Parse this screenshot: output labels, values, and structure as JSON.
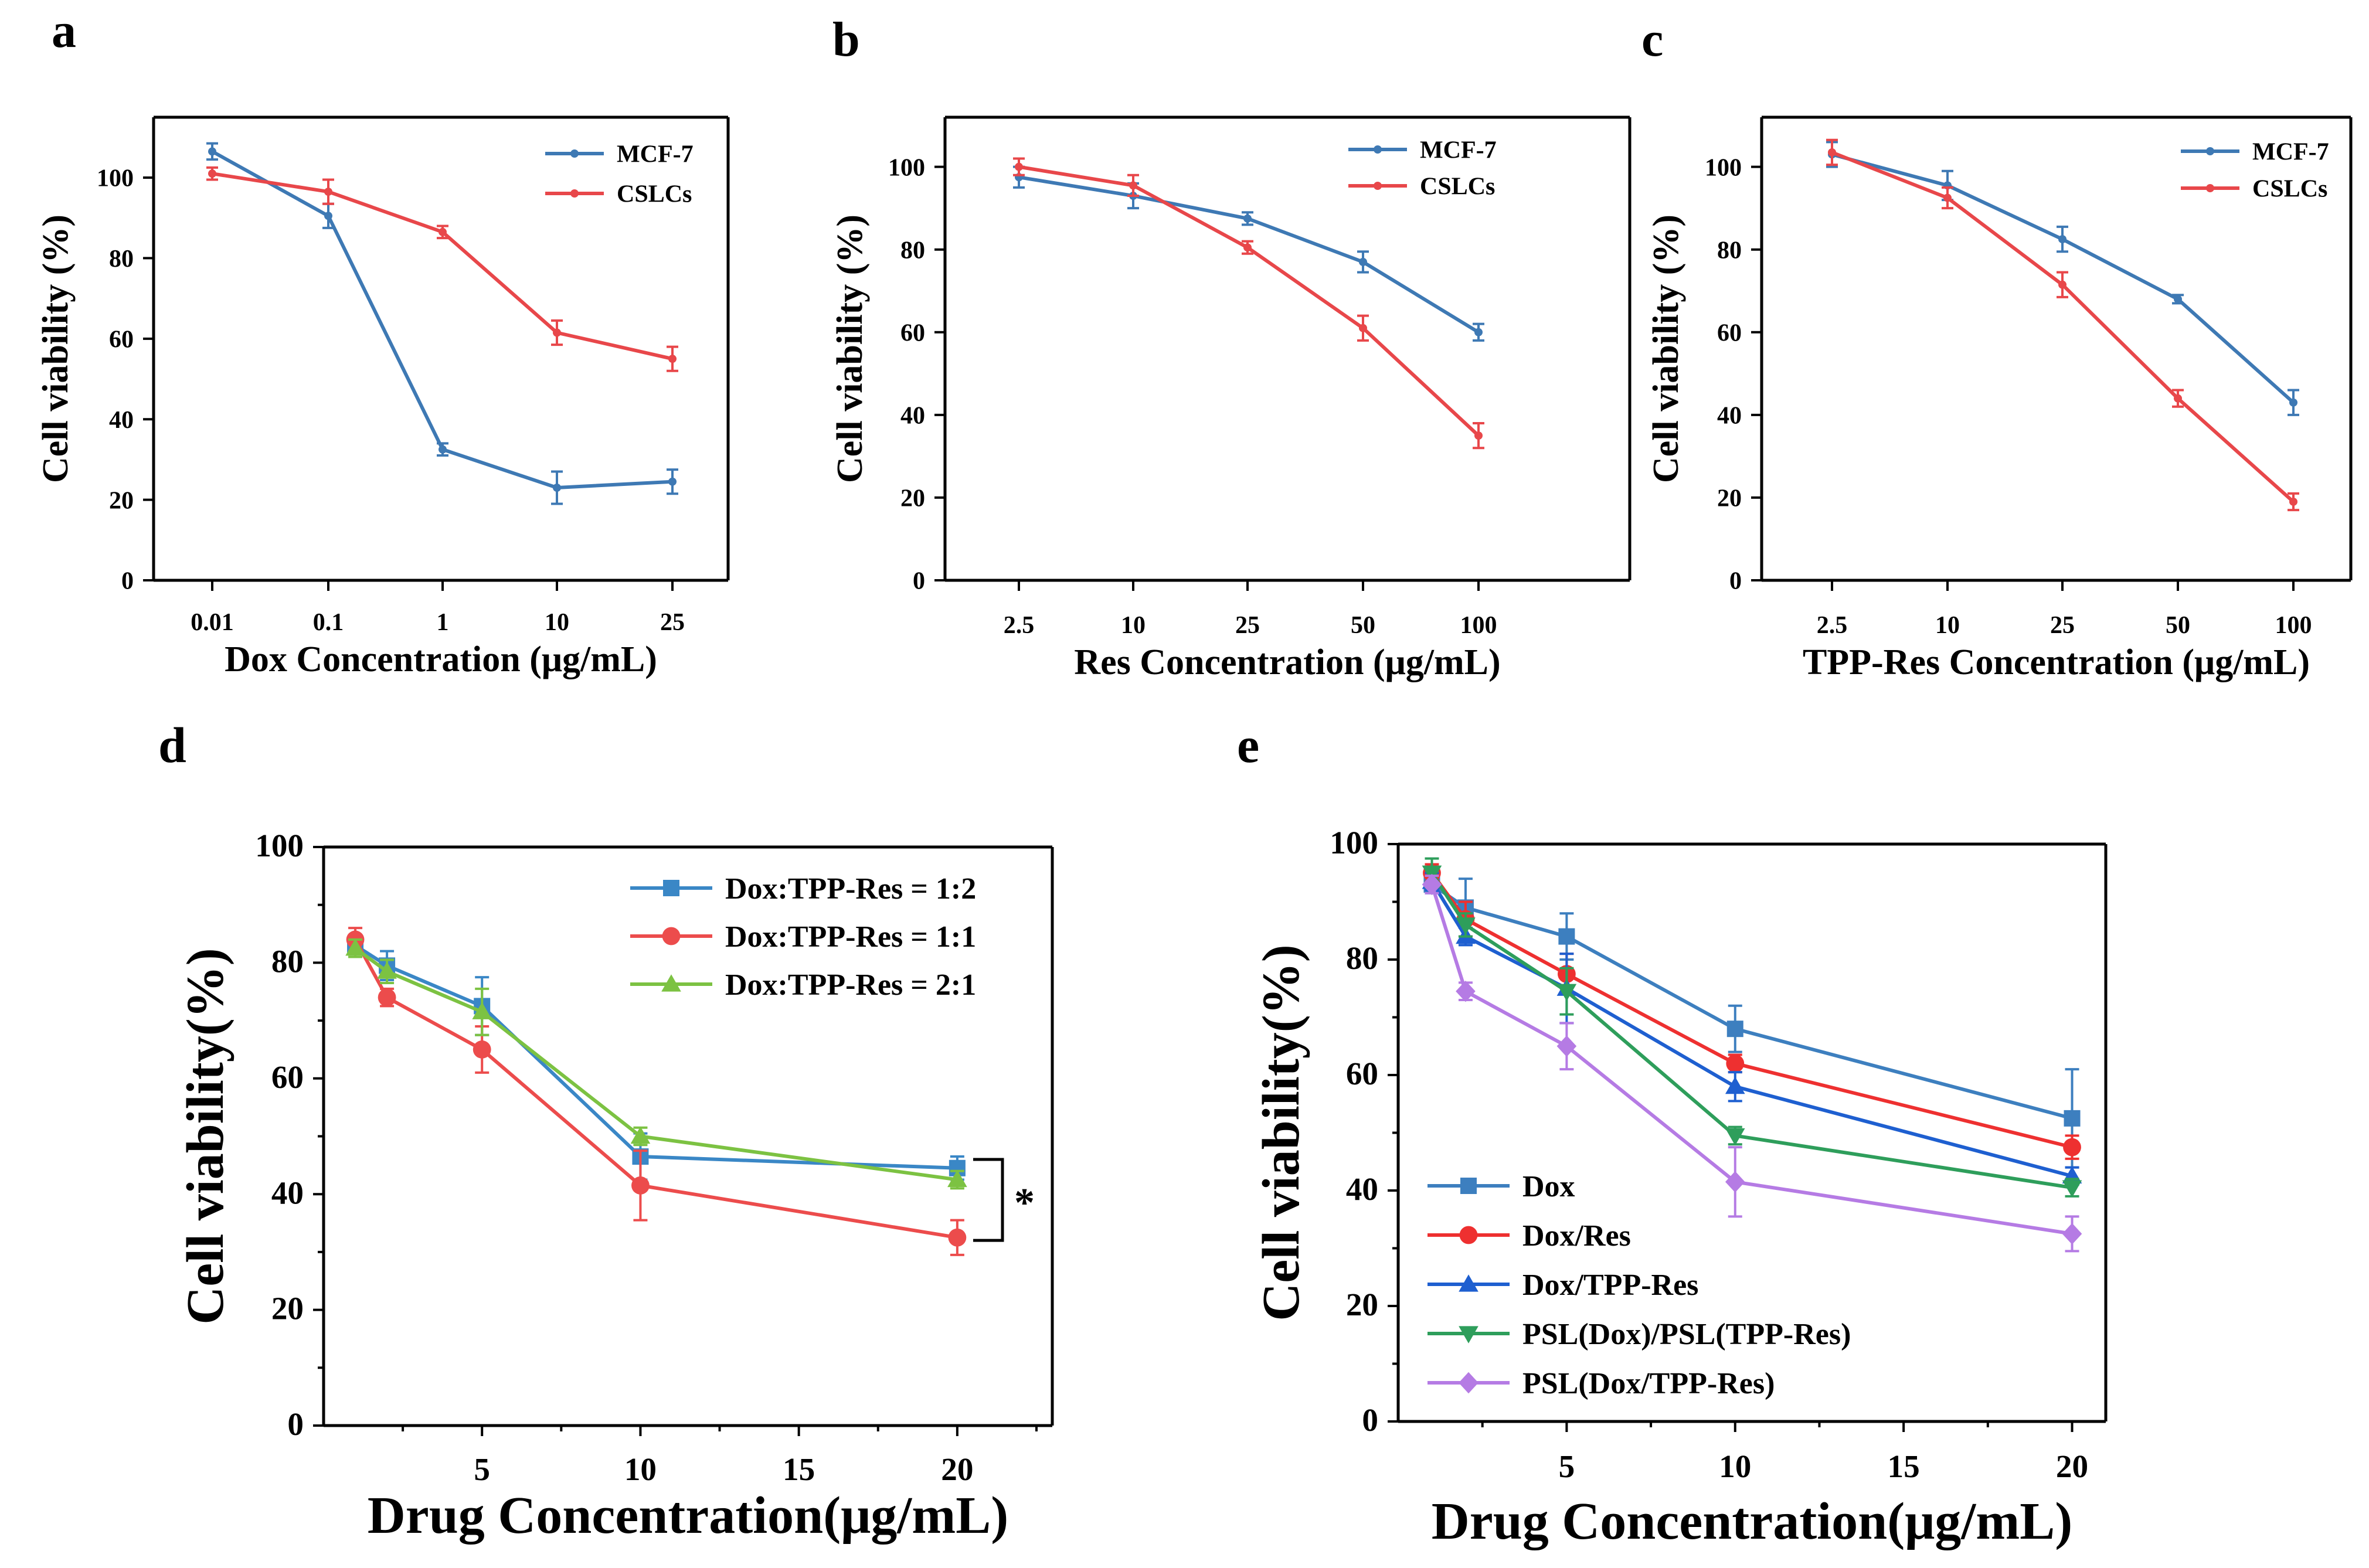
{
  "figure": {
    "panels": [
      "a",
      "b",
      "c",
      "d",
      "e"
    ]
  },
  "chart_data": [
    {
      "id": "a",
      "panel_label": "a",
      "type": "line",
      "xscale": "categorical",
      "categories": [
        "0.01",
        "0.1",
        "1",
        "10",
        "25"
      ],
      "xlabel": "Dox Concentration (μg/mL)",
      "ylabel": "Cell viability (%)",
      "ylim": [
        0,
        115
      ],
      "yticks": [
        0,
        20,
        40,
        60,
        80,
        100
      ],
      "legend": "top-right",
      "series": [
        {
          "name": "MCF-7",
          "color": "#3e79b4",
          "marker": "dot",
          "values": [
            106.5,
            90.5,
            32.5,
            23,
            24.5
          ],
          "errors": [
            2,
            3,
            1.5,
            4,
            3
          ]
        },
        {
          "name": "CSLCs",
          "color": "#e8474a",
          "marker": "dot",
          "values": [
            101,
            96.5,
            86.5,
            61.5,
            55
          ],
          "errors": [
            1.5,
            3,
            1.5,
            3,
            3
          ]
        }
      ]
    },
    {
      "id": "b",
      "panel_label": "b",
      "type": "line",
      "xscale": "categorical",
      "categories": [
        "2.5",
        "10",
        "25",
        "50",
        "100"
      ],
      "xlabel": "Res Concentration (μg/mL)",
      "ylabel": "Cell viability (%)",
      "ylim": [
        0,
        112
      ],
      "yticks": [
        0,
        20,
        40,
        60,
        80,
        100
      ],
      "legend": "top-right",
      "series": [
        {
          "name": "MCF-7",
          "color": "#3e79b4",
          "marker": "dot",
          "values": [
            97.5,
            93,
            87.5,
            77,
            60
          ],
          "errors": [
            2.5,
            3,
            1.5,
            2.5,
            2
          ]
        },
        {
          "name": "CSLCs",
          "color": "#e8474a",
          "marker": "dot",
          "values": [
            100,
            95.5,
            80.5,
            61,
            35
          ],
          "errors": [
            2,
            2.5,
            1.5,
            3,
            3
          ]
        }
      ]
    },
    {
      "id": "c",
      "panel_label": "c",
      "type": "line",
      "xscale": "categorical",
      "categories": [
        "2.5",
        "10",
        "25",
        "50",
        "100"
      ],
      "xlabel": "TPP-Res Concentration (μg/mL)",
      "ylabel": "Cell viability (%)",
      "ylim": [
        0,
        112
      ],
      "yticks": [
        0,
        20,
        40,
        60,
        80,
        100
      ],
      "legend": "top-right",
      "series": [
        {
          "name": "MCF-7",
          "color": "#3e79b4",
          "marker": "dot",
          "values": [
            103,
            95.5,
            82.5,
            68,
            43
          ],
          "errors": [
            3,
            3.5,
            3,
            1,
            3
          ]
        },
        {
          "name": "CSLCs",
          "color": "#e8474a",
          "marker": "dot",
          "values": [
            103.5,
            92.5,
            71.5,
            44,
            19
          ],
          "errors": [
            3,
            2.5,
            3,
            2,
            2
          ]
        }
      ]
    },
    {
      "id": "d",
      "panel_label": "d",
      "type": "line",
      "xscale": "linear",
      "xlim": [
        0,
        23
      ],
      "xticks": [
        5,
        10,
        15,
        20
      ],
      "x": [
        1,
        2,
        5,
        10,
        20
      ],
      "xlabel": "Drug Concentration(μg/mL)",
      "ylabel": "Cell viability(%)",
      "ylim": [
        0,
        100
      ],
      "yticks": [
        0,
        20,
        40,
        60,
        80,
        100
      ],
      "legend": "top-right",
      "annotation": "*",
      "series": [
        {
          "name": "Dox:TPP-Res = 1:2",
          "color": "#3a87c6",
          "marker": "square",
          "values": [
            83,
            79.5,
            72.5,
            46.5,
            44.5
          ],
          "errors": [
            1.5,
            2.5,
            5,
            4,
            2
          ]
        },
        {
          "name": "Dox:TPP-Res = 1:1",
          "color": "#ec4c4c",
          "marker": "circle",
          "values": [
            84,
            74,
            65,
            41.5,
            32.5
          ],
          "errors": [
            2,
            1.5,
            4,
            6,
            3
          ]
        },
        {
          "name": "Dox:TPP-Res = 2:1",
          "color": "#7cc242",
          "marker": "triangle",
          "values": [
            82.5,
            78.5,
            71.5,
            50,
            42.5
          ],
          "errors": [
            1.5,
            2,
            4,
            1.5,
            1.5
          ]
        }
      ]
    },
    {
      "id": "e",
      "panel_label": "e",
      "type": "line",
      "xscale": "linear",
      "xlim": [
        0,
        21
      ],
      "xticks": [
        5,
        10,
        15,
        20
      ],
      "x": [
        1,
        2,
        5,
        10,
        20
      ],
      "xlabel": "Drug Concentration(μg/mL)",
      "ylabel": "Cell viability(%)",
      "ylim": [
        0,
        100
      ],
      "yticks": [
        0,
        20,
        40,
        60,
        80,
        100
      ],
      "legend": "bottom-left",
      "series": [
        {
          "name": "Dox",
          "color": "#3d7fbf",
          "marker": "square",
          "values": [
            93,
            89,
            84,
            68,
            52.5
          ],
          "errors": [
            1.5,
            5,
            4,
            4,
            8.5
          ]
        },
        {
          "name": "Dox/Res",
          "color": "#ee3030",
          "marker": "circle",
          "values": [
            95,
            87,
            77.5,
            62,
            47.5
          ],
          "errors": [
            1.5,
            3,
            3.5,
            1.5,
            2
          ]
        },
        {
          "name": "Dox/TPP-Res",
          "color": "#1e5fd0",
          "marker": "triangle",
          "values": [
            93.5,
            84,
            75,
            58,
            42.5
          ],
          "errors": [
            1.5,
            1.5,
            6,
            2.5,
            1.5
          ]
        },
        {
          "name": "PSL(Dox)/PSL(TPP-Res)",
          "color": "#2e9e5b",
          "marker": "triangle-down",
          "values": [
            95,
            86,
            74.5,
            49.5,
            40.5
          ],
          "errors": [
            2.5,
            2,
            4,
            1.5,
            1.5
          ]
        },
        {
          "name": "PSL(Dox/TPP-Res)",
          "color": "#b57be4",
          "marker": "diamond",
          "values": [
            93,
            74.5,
            65,
            41.5,
            32.5
          ],
          "errors": [
            1.5,
            1.5,
            4,
            6,
            3
          ]
        }
      ]
    }
  ]
}
